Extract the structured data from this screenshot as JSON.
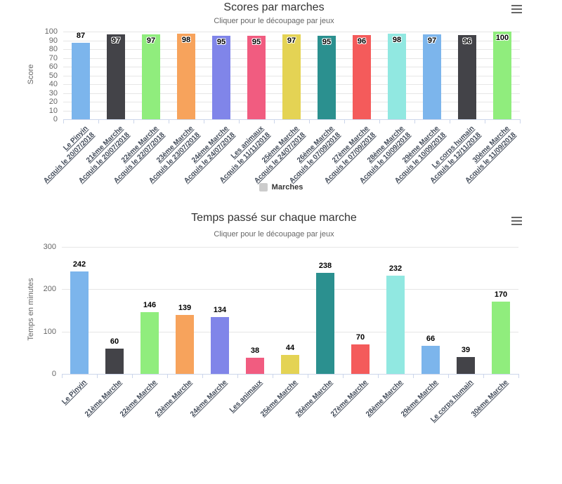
{
  "icons": {
    "chart_menu": "hamburger-menu-icon"
  },
  "chart_data": [
    {
      "type": "bar",
      "title": "Scores par marches",
      "subtitle": "Cliquer pour le découpage par jeux",
      "ylabel": "Score",
      "xlabel": "",
      "ylim": [
        0,
        100
      ],
      "yticks": [
        0,
        10,
        20,
        30,
        40,
        50,
        60,
        70,
        80,
        90,
        100
      ],
      "grid": true,
      "legend_position": "bottom",
      "legend": {
        "label": "Marches",
        "color": "#cccccc"
      },
      "categories": [
        "Le Pinyin",
        "21ème Marche",
        "22ème Marche",
        "23ème Marche",
        "24ème Marche",
        "Les animaux",
        "25ème Marche",
        "26ème Marche",
        "27ème Marche",
        "28ème Marche",
        "29ème Marche",
        "Le corps humain",
        "30ème Marche"
      ],
      "sublabels": [
        "Acquis le 20/07/2018",
        "Acquis le 20/07/2018",
        "Acquis le 22/07/2018",
        "Acquis le 23/07/2018",
        "Acquis le 24/07/2018",
        "Acquis le 11/11/2018",
        "Acquis le 24/07/2018",
        "Acquis le 07/09/2018",
        "Acquis le 07/09/2018",
        "Acquis le 10/09/2018",
        "Acquis le 10/09/2018",
        "Acquis le 12/11/2018",
        "Acquis le 11/09/2018"
      ],
      "values": [
        87,
        97,
        97,
        98,
        95,
        95,
        97,
        95,
        96,
        98,
        97,
        96,
        100
      ],
      "colors": [
        "#7cb5ec",
        "#434348",
        "#90ed7d",
        "#f7a35c",
        "#8085e9",
        "#f15c80",
        "#e4d354",
        "#2b908f",
        "#f45b5b",
        "#91e8e1",
        "#7cb5ec",
        "#434348",
        "#90ed7d"
      ]
    },
    {
      "type": "bar",
      "title": "Temps passé sur chaque marche",
      "subtitle": "Cliquer pour le découpage par jeux",
      "ylabel": "Temps en minutes",
      "xlabel": "",
      "ylim": [
        0,
        300
      ],
      "yticks": [
        0,
        100,
        200,
        300
      ],
      "grid": true,
      "legend_position": "none",
      "legend": null,
      "categories": [
        "Le Pinyin",
        "21ème Marche",
        "22ème Marche",
        "23ème Marche",
        "24ème Marche",
        "Les animaux",
        "25ème Marche",
        "26ème Marche",
        "27ème Marche",
        "28ème Marche",
        "29ème Marche",
        "Le corps humain",
        "30ème Marche"
      ],
      "sublabels": null,
      "values": [
        242,
        60,
        146,
        139,
        134,
        38,
        44,
        238,
        70,
        232,
        66,
        39,
        170
      ],
      "colors": [
        "#7cb5ec",
        "#434348",
        "#90ed7d",
        "#f7a35c",
        "#8085e9",
        "#f15c80",
        "#e4d354",
        "#2b908f",
        "#f45b5b",
        "#91e8e1",
        "#7cb5ec",
        "#434348",
        "#90ed7d"
      ]
    }
  ]
}
